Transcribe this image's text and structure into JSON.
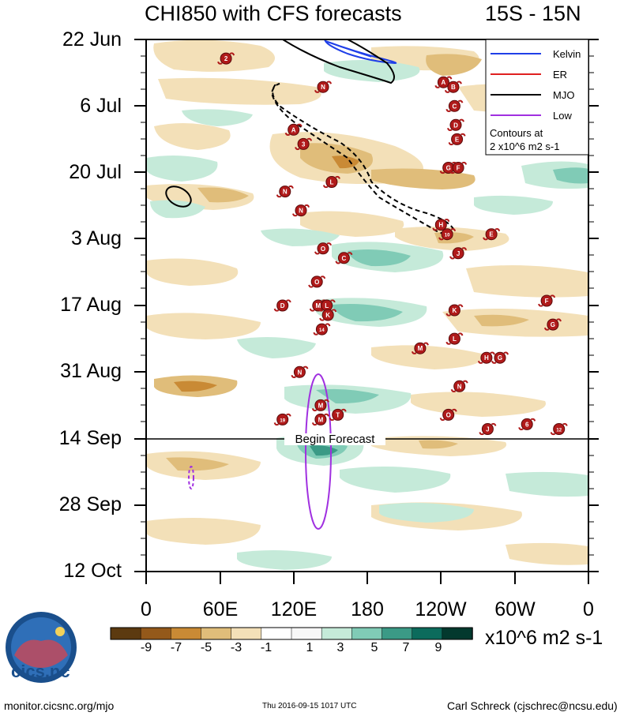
{
  "title": "CHI850 with CFS forecasts",
  "lat_range": "15S - 15N",
  "forecast_label": "Begin Forecast",
  "units_label": "x10^6 m2 s-1",
  "legend": {
    "entries": [
      {
        "name": "Kelvin",
        "color": "#1f3fe8"
      },
      {
        "name": "ER",
        "color": "#e02020"
      },
      {
        "name": "MJO",
        "color": "#000000"
      },
      {
        "name": "Low",
        "color": "#a030e0"
      }
    ],
    "contours_line1": "Contours at",
    "contours_line2": "2 x10^6 m2 s-1"
  },
  "chart_data": {
    "type": "heatmap",
    "title": "CHI850 with CFS forecasts",
    "subtitle": "15S - 15N",
    "x_axis": {
      "labels": [
        "0",
        "60E",
        "120E",
        "180",
        "120W",
        "60W",
        "0"
      ],
      "range_deg_east": [
        0,
        360
      ]
    },
    "y_axis": {
      "labels": [
        "22 Jun",
        "6 Jul",
        "20 Jul",
        "3 Aug",
        "17 Aug",
        "31 Aug",
        "14 Sep",
        "28 Sep",
        "12 Oct"
      ],
      "direction": "time increases downward"
    },
    "forecast_start": "14 Sep",
    "colorbar": {
      "levels": [
        "-9",
        "-7",
        "-5",
        "-3",
        "-1",
        "1",
        "3",
        "5",
        "7",
        "9"
      ],
      "colors": [
        "#5c3a10",
        "#94591a",
        "#c98a35",
        "#e0bd7a",
        "#f3e0b8",
        "#ffffff",
        "#f7f7f7",
        "#c5ead9",
        "#80cbb6",
        "#3b9a86",
        "#0c6b5c",
        "#03392e"
      ],
      "units": "x10^6 m2 s-1"
    },
    "contour_interval": "2 x10^6 m2 s-1",
    "storm_markers": [
      {
        "label": "2",
        "lon": 65,
        "day": 4
      },
      {
        "label": "N",
        "lon": 144,
        "day": 10
      },
      {
        "label": "A",
        "lon": 120,
        "day": 19
      },
      {
        "label": "3",
        "lon": 128,
        "day": 22
      },
      {
        "label": "A",
        "lon": 242,
        "day": 9
      },
      {
        "label": "B",
        "lon": 250,
        "day": 10
      },
      {
        "label": "C",
        "lon": 251,
        "day": 14
      },
      {
        "label": "D",
        "lon": 252,
        "day": 18
      },
      {
        "label": "E",
        "lon": 253,
        "day": 21
      },
      {
        "label": "G",
        "lon": 246,
        "day": 27
      },
      {
        "label": "F",
        "lon": 254,
        "day": 27
      },
      {
        "label": "L",
        "lon": 151,
        "day": 30
      },
      {
        "label": "N",
        "lon": 113,
        "day": 32
      },
      {
        "label": "N",
        "lon": 126,
        "day": 36
      },
      {
        "label": "H",
        "lon": 240,
        "day": 39
      },
      {
        "label": "10",
        "lon": 245,
        "day": 41
      },
      {
        "label": "E",
        "lon": 281,
        "day": 41
      },
      {
        "label": "O",
        "lon": 144,
        "day": 44
      },
      {
        "label": "C",
        "lon": 161,
        "day": 46
      },
      {
        "label": "J",
        "lon": 254,
        "day": 45
      },
      {
        "label": "O",
        "lon": 139,
        "day": 51
      },
      {
        "label": "D",
        "lon": 111,
        "day": 56
      },
      {
        "label": "M",
        "lon": 140,
        "day": 56
      },
      {
        "label": "L",
        "lon": 147,
        "day": 56
      },
      {
        "label": "K",
        "lon": 148,
        "day": 58
      },
      {
        "label": "14",
        "lon": 143,
        "day": 61
      },
      {
        "label": "K",
        "lon": 251,
        "day": 57
      },
      {
        "label": "L",
        "lon": 251,
        "day": 63
      },
      {
        "label": "M",
        "lon": 223,
        "day": 65
      },
      {
        "label": "F",
        "lon": 326,
        "day": 55
      },
      {
        "label": "G",
        "lon": 331,
        "day": 60
      },
      {
        "label": "H",
        "lon": 277,
        "day": 67
      },
      {
        "label": "G",
        "lon": 288,
        "day": 67
      },
      {
        "label": "N",
        "lon": 125,
        "day": 70
      },
      {
        "label": "N",
        "lon": 255,
        "day": 73
      },
      {
        "label": "M",
        "lon": 142,
        "day": 77
      },
      {
        "label": "M",
        "lon": 142,
        "day": 80
      },
      {
        "label": "T",
        "lon": 156,
        "day": 79
      },
      {
        "label": "19",
        "lon": 111,
        "day": 80
      },
      {
        "label": "O",
        "lon": 246,
        "day": 79
      },
      {
        "label": "J",
        "lon": 278,
        "day": 82
      },
      {
        "label": "6",
        "lon": 310,
        "day": 81
      },
      {
        "label": "12",
        "lon": 336,
        "day": 82
      }
    ]
  }
}
